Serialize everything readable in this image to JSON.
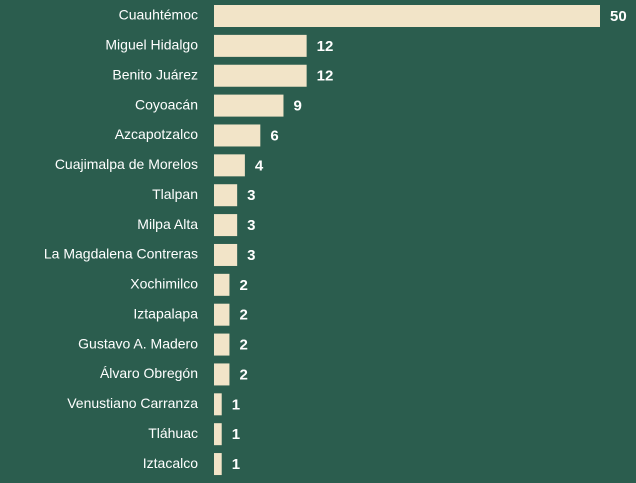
{
  "chart_data": {
    "type": "bar",
    "orientation": "horizontal",
    "categories": [
      "Cuauhtémoc",
      "Miguel Hidalgo",
      "Benito Juárez",
      "Coyoacán",
      "Azcapotzalco",
      "Cuajimalpa de Morelos",
      "Tlalpan",
      "Milpa Alta",
      "La Magdalena Contreras",
      "Xochimilco",
      "Iztapalapa",
      "Gustavo A. Madero",
      "Álvaro Obregón",
      "Venustiano Carranza",
      "Tláhuac",
      "Iztacalco"
    ],
    "values": [
      50,
      12,
      12,
      9,
      6,
      4,
      3,
      3,
      3,
      2,
      2,
      2,
      2,
      1,
      1,
      1
    ],
    "color": "#f2e4c8"
  }
}
